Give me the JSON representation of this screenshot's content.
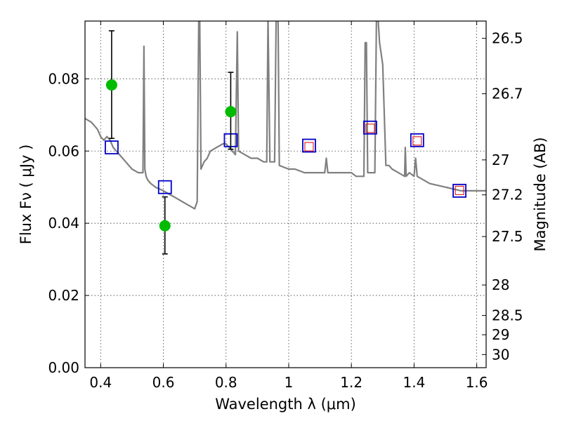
{
  "chart_data": {
    "type": "scatter",
    "title": "",
    "xlabel": "Wavelength  λ (μm)",
    "ylabel": "Flux  Fν  ( μJy )",
    "y2label": "Magnitude (AB)",
    "xlim": [
      0.35,
      1.63
    ],
    "ylim": [
      0.0,
      0.096
    ],
    "xticks": [
      "0.4",
      "0.6",
      "0.8",
      "1",
      "1.2",
      "1.4",
      "1.6"
    ],
    "xtick_values": [
      0.4,
      0.6,
      0.8,
      1.0,
      1.2,
      1.4,
      1.6
    ],
    "yticks": [
      "0.00",
      "0.02",
      "0.04",
      "0.06",
      "0.08"
    ],
    "ytick_values": [
      0.0,
      0.02,
      0.04,
      0.06,
      0.08
    ],
    "y2ticks": [
      "26.5",
      "26.7",
      "27",
      "27.2",
      "27.5",
      "28",
      "28.5",
      "29",
      "30"
    ],
    "y2tick_values": [
      26.5,
      26.7,
      27.0,
      27.2,
      27.5,
      28.0,
      28.5,
      29.0,
      30.0
    ],
    "grid": true,
    "legend": "none",
    "colors": {
      "spectrum": "#808080",
      "model_box": "#0000cc",
      "red_box": "#dd0000",
      "observed": "#00bb00",
      "errorbar": "#000000"
    },
    "series": [
      {
        "kind": "line",
        "x": [
          0.35,
          0.37,
          0.38,
          0.39,
          0.4,
          0.41,
          0.42,
          0.43,
          0.44,
          0.45,
          0.46,
          0.47,
          0.48,
          0.5,
          0.52,
          0.535,
          0.538,
          0.541,
          0.545,
          0.55,
          0.56,
          0.575,
          0.6,
          0.62,
          0.64,
          0.66,
          0.68,
          0.7,
          0.708,
          0.713,
          0.716,
          0.72,
          0.73,
          0.74,
          0.75,
          0.77,
          0.79,
          0.8,
          0.82,
          0.83,
          0.836,
          0.84,
          0.86,
          0.88,
          0.9,
          0.92,
          0.93,
          0.934,
          0.94,
          0.955,
          0.96,
          0.966,
          0.97,
          1.0,
          1.02,
          1.05,
          1.08,
          1.1,
          1.115,
          1.12,
          1.125,
          1.15,
          1.18,
          1.2,
          1.215,
          1.24,
          1.244,
          1.248,
          1.252,
          1.275,
          1.28,
          1.285,
          1.29,
          1.3,
          1.31,
          1.32,
          1.33,
          1.35,
          1.37,
          1.372,
          1.375,
          1.385,
          1.4,
          1.405,
          1.41,
          1.43,
          1.45,
          1.5,
          1.55,
          1.6,
          1.63
        ],
        "y": [
          0.069,
          0.068,
          0.067,
          0.066,
          0.064,
          0.063,
          0.064,
          0.063,
          0.061,
          0.06,
          0.059,
          0.058,
          0.057,
          0.055,
          0.054,
          0.054,
          0.089,
          0.055,
          0.053,
          0.052,
          0.051,
          0.05,
          0.049,
          0.048,
          0.047,
          0.046,
          0.045,
          0.044,
          0.046,
          0.097,
          0.097,
          0.055,
          0.057,
          0.058,
          0.06,
          0.061,
          0.062,
          0.062,
          0.06,
          0.059,
          0.093,
          0.06,
          0.059,
          0.058,
          0.058,
          0.057,
          0.057,
          0.097,
          0.057,
          0.057,
          0.097,
          0.097,
          0.056,
          0.055,
          0.055,
          0.054,
          0.054,
          0.054,
          0.054,
          0.058,
          0.054,
          0.054,
          0.054,
          0.054,
          0.053,
          0.053,
          0.09,
          0.09,
          0.054,
          0.054,
          0.097,
          0.097,
          0.09,
          0.084,
          0.056,
          0.056,
          0.055,
          0.054,
          0.053,
          0.061,
          0.053,
          0.054,
          0.053,
          0.058,
          0.053,
          0.052,
          0.051,
          0.05,
          0.049,
          0.049,
          0.049
        ]
      },
      {
        "kind": "blue_squares",
        "x": [
          0.435,
          0.605,
          0.815,
          1.065,
          1.26,
          1.41,
          1.545
        ],
        "y": [
          0.061,
          0.05,
          0.063,
          0.0615,
          0.0665,
          0.063,
          0.049
        ]
      },
      {
        "kind": "red_squares",
        "x": [
          1.065,
          1.26,
          1.41,
          1.545
        ],
        "y": [
          0.0612,
          0.0663,
          0.0628,
          0.0491
        ]
      },
      {
        "kind": "observed_points",
        "x": [
          0.435,
          0.605,
          0.815
        ],
        "y": [
          0.0783,
          0.0393,
          0.0709
        ],
        "yerr_low": [
          0.0635,
          0.0315,
          0.0605
        ],
        "yerr_high": [
          0.0933,
          0.0473,
          0.0818
        ]
      }
    ]
  }
}
